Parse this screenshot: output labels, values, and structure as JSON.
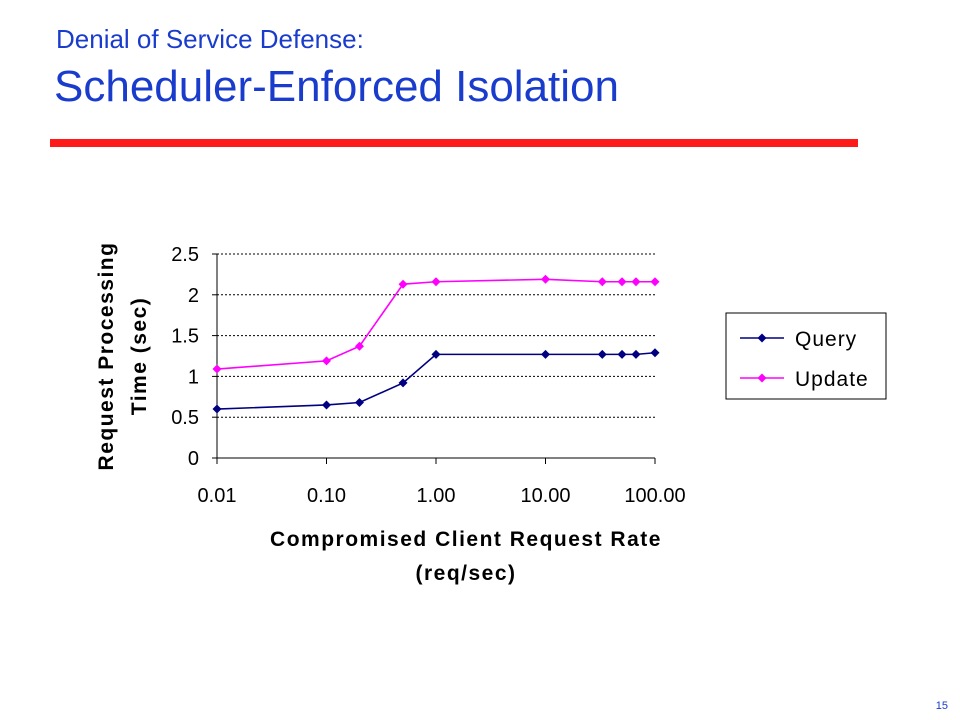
{
  "slide": {
    "subtitle": "Denial of Service Defense:",
    "title": "Scheduler-Enforced Isolation",
    "page_number": "15"
  },
  "colors": {
    "title": "#1a3ccc",
    "rule": "#ff1a1a",
    "query": "#000080",
    "update": "#ff00ff"
  },
  "chart_data": {
    "type": "line",
    "title": "",
    "xlabel_lines": [
      "Compromised Client Request Rate",
      "(req/sec)"
    ],
    "ylabel_lines": [
      "Request Processing",
      "Time (sec)"
    ],
    "x_scale": "log",
    "xlim": [
      0.01,
      100
    ],
    "ylim": [
      0,
      2.5
    ],
    "x_ticks": [
      0.01,
      0.1,
      1,
      10,
      100
    ],
    "x_tick_labels": [
      "0.01",
      "0.10",
      "1.00",
      "10.00",
      "100.00"
    ],
    "y_ticks": [
      0,
      0.5,
      1,
      1.5,
      2,
      2.5
    ],
    "y_tick_labels": [
      "0",
      "0.5",
      "1",
      "1.5",
      "2",
      "2.5"
    ],
    "grid": "horizontal dashed",
    "legend_position": "right",
    "x": [
      0.01,
      0.1,
      0.2,
      0.5,
      1,
      10,
      33,
      50,
      67,
      100
    ],
    "series": [
      {
        "name": "Query",
        "color": "#000080",
        "values": [
          0.6,
          0.65,
          0.68,
          0.92,
          1.27,
          1.27,
          1.27,
          1.27,
          1.27,
          1.29
        ]
      },
      {
        "name": "Update",
        "color": "#ff00ff",
        "values": [
          1.09,
          1.19,
          1.37,
          2.13,
          2.16,
          2.19,
          2.16,
          2.16,
          2.16,
          2.16
        ]
      }
    ]
  }
}
